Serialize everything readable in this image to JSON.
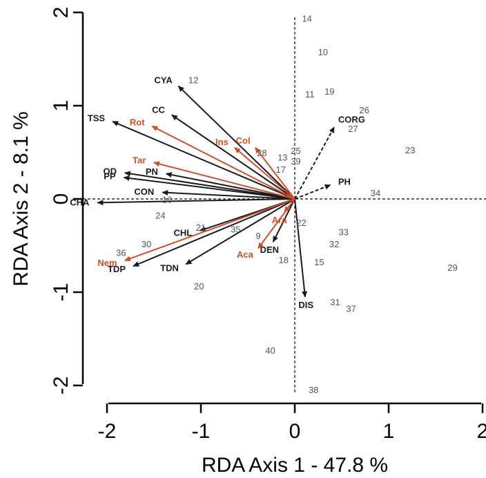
{
  "chart_data": {
    "type": "scatter",
    "xlabel": "RDA Axis 1 - 47.8 %",
    "ylabel": "RDA Axis 2 - 8.1 %",
    "xlim": [
      -2,
      2
    ],
    "ylim": [
      -2,
      2
    ],
    "x_ticks": [
      -2,
      -1,
      0,
      1,
      2
    ],
    "y_ticks": [
      -2,
      -1,
      0,
      1,
      2
    ],
    "grid": false,
    "reference_lines": "dashed lines at x=0 and y=0",
    "colors": {
      "environment_vectors": "#1a1a1a",
      "species_vectors": "#c8502a",
      "site_labels": "#555555",
      "dashed_vectors": "#1a1a1a"
    },
    "sites": [
      {
        "label": "14",
        "x": 0.13,
        "y": 1.93
      },
      {
        "label": "10",
        "x": 0.3,
        "y": 1.57
      },
      {
        "label": "12",
        "x": -1.08,
        "y": 1.27
      },
      {
        "label": "19",
        "x": 0.37,
        "y": 1.15
      },
      {
        "label": "11",
        "x": 0.16,
        "y": 1.12
      },
      {
        "label": "26",
        "x": 0.74,
        "y": 0.95
      },
      {
        "label": "27",
        "x": 0.62,
        "y": 0.75
      },
      {
        "label": "23",
        "x": 1.23,
        "y": 0.52
      },
      {
        "label": "28",
        "x": -0.35,
        "y": 0.49
      },
      {
        "label": "25",
        "x": 0.01,
        "y": 0.51
      },
      {
        "label": "13",
        "x": -0.13,
        "y": 0.44
      },
      {
        "label": "39",
        "x": 0.01,
        "y": 0.4
      },
      {
        "label": "17",
        "x": -0.15,
        "y": 0.31
      },
      {
        "label": "34",
        "x": 0.86,
        "y": 0.06
      },
      {
        "label": "16",
        "x": -1.36,
        "y": -0.01
      },
      {
        "label": "24",
        "x": -1.43,
        "y": -0.18
      },
      {
        "label": "22",
        "x": 0.07,
        "y": -0.26
      },
      {
        "label": "21",
        "x": -1.0,
        "y": -0.31
      },
      {
        "label": "35",
        "x": -0.63,
        "y": -0.33
      },
      {
        "label": "33",
        "x": 0.52,
        "y": -0.36
      },
      {
        "label": "9",
        "x": -0.39,
        "y": -0.4
      },
      {
        "label": "32",
        "x": 0.42,
        "y": -0.49
      },
      {
        "label": "30",
        "x": -1.58,
        "y": -0.49
      },
      {
        "label": "36",
        "x": -1.85,
        "y": -0.58
      },
      {
        "label": "18",
        "x": -0.12,
        "y": -0.66
      },
      {
        "label": "15",
        "x": 0.26,
        "y": -0.68
      },
      {
        "label": "29",
        "x": 1.68,
        "y": -0.74
      },
      {
        "label": "20",
        "x": -1.02,
        "y": -0.94
      },
      {
        "label": "31",
        "x": 0.43,
        "y": -1.11
      },
      {
        "label": "37",
        "x": 0.6,
        "y": -1.18
      },
      {
        "label": "40",
        "x": -0.26,
        "y": -1.63
      },
      {
        "label": "38",
        "x": 0.2,
        "y": -2.05
      }
    ],
    "environment_vectors": [
      {
        "label": "CYA",
        "x": -1.24,
        "y": 1.21
      },
      {
        "label": "CC",
        "x": -1.31,
        "y": 0.9
      },
      {
        "label": "TSS",
        "x": -1.94,
        "y": 0.83
      },
      {
        "label": "OD",
        "x": -1.81,
        "y": 0.28
      },
      {
        "label": "PP",
        "x": -1.82,
        "y": 0.23
      },
      {
        "label": "PN",
        "x": -1.37,
        "y": 0.27
      },
      {
        "label": "CON",
        "x": -1.41,
        "y": 0.07
      },
      {
        "label": "CHA",
        "x": -2.1,
        "y": -0.04
      },
      {
        "label": "CHL",
        "x": -1.01,
        "y": -0.34
      },
      {
        "label": "TDP",
        "x": -1.72,
        "y": -0.72
      },
      {
        "label": "TDN",
        "x": -1.16,
        "y": -0.7
      },
      {
        "label": "DEN",
        "x": -0.23,
        "y": -0.46
      },
      {
        "label": "DIS",
        "x": 0.11,
        "y": -1.05
      }
    ],
    "species_vectors": [
      {
        "label": "Rot",
        "x": -1.52,
        "y": 0.78
      },
      {
        "label": "Ins",
        "x": -0.64,
        "y": 0.55
      },
      {
        "label": "Col",
        "x": -0.42,
        "y": 0.55
      },
      {
        "label": "Tar",
        "x": -1.5,
        "y": 0.39
      },
      {
        "label": "Nem",
        "x": -1.81,
        "y": -0.66
      },
      {
        "label": "Aca",
        "x": -0.39,
        "y": -0.53
      },
      {
        "label": "Ara",
        "x": -0.11,
        "y": -0.14
      }
    ],
    "supplementary_vectors": [
      {
        "label": "CORG",
        "x": 0.42,
        "y": 0.77
      },
      {
        "label": "PH",
        "x": 0.38,
        "y": 0.15
      }
    ]
  }
}
